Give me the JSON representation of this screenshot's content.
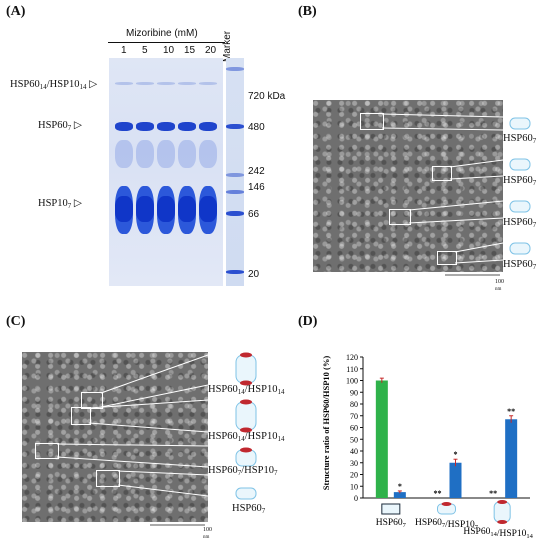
{
  "panels": {
    "a": "(A)",
    "b": "(B)",
    "c": "(C)",
    "d": "(D)"
  },
  "panel_a": {
    "title": "Mizoribine (mM)",
    "lanes": [
      "1",
      "5",
      "10",
      "15",
      "20"
    ],
    "marker_label": "Marker",
    "left_labels": {
      "l1_main": "HSP60",
      "l1_sub1": "14",
      "l1_mid": "/HSP10",
      "l1_sub2": "14",
      "l2_main": "HSP60",
      "l2_sub": "7",
      "l3_main": "HSP10",
      "l3_sub": "7"
    },
    "markers": [
      "720 kDa",
      "480",
      "242",
      "146",
      "66",
      "20"
    ]
  },
  "panel_b": {
    "labels": [
      {
        "main": "HSP60",
        "sub": "7"
      },
      {
        "main": "HSP60",
        "sub": "7"
      },
      {
        "main": "HSP60",
        "sub": "7"
      },
      {
        "main": "HSP60",
        "sub": "7"
      }
    ],
    "scale": "100",
    "scale_unit": "nm"
  },
  "panel_c": {
    "labels": [
      {
        "main": "HSP60",
        "sub1": "14",
        "mid": "/HSP10",
        "sub2": "14"
      },
      {
        "main": "HSP60",
        "sub1": "14",
        "mid": "/HSP10",
        "sub2": "14"
      },
      {
        "main": "HSP60",
        "sub1": "7",
        "mid": "/HSP10",
        "sub2": "7"
      },
      {
        "main": "HSP60",
        "sub1": "7",
        "mid": "",
        "sub2": ""
      }
    ],
    "scale": "100",
    "scale_unit": "nm"
  },
  "chart_data": {
    "type": "bar",
    "ylabel": "Structure ratio of HSP60/HSP10 (%)",
    "ylim": [
      0,
      120
    ],
    "yticks": [
      "0",
      "10",
      "20",
      "30",
      "40",
      "50",
      "60",
      "70",
      "80",
      "90",
      "100",
      "110",
      "120"
    ],
    "grid": false,
    "categories": [
      {
        "main": "HSP60",
        "sub": "7"
      },
      {
        "main": "HSP60",
        "sub": "7",
        "mid": "/HSP10",
        "sub2": "7"
      },
      {
        "main": "HSP60",
        "sub": "14",
        "mid": "/HSP10",
        "sub2": "14"
      }
    ],
    "series": [
      {
        "color": "#2fb24a",
        "values": [
          100,
          0,
          0
        ],
        "errors": [
          2,
          0,
          0
        ],
        "marks": [
          "",
          "**",
          "**"
        ]
      },
      {
        "color": "#1f6fc4",
        "values": [
          5,
          30,
          67
        ],
        "errors": [
          1,
          3,
          3
        ],
        "marks": [
          "*",
          "*",
          "**"
        ]
      }
    ]
  }
}
